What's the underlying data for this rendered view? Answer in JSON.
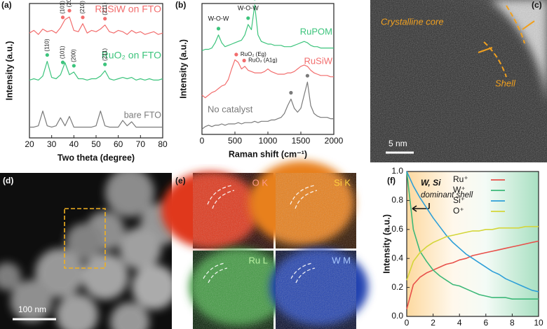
{
  "panel_labels": [
    "(a)",
    "(b)",
    "(c)",
    "(d)",
    "(e)",
    "(f)"
  ],
  "tem": {
    "core": "Crystalline core",
    "shell": "Shell",
    "scale": "5 nm"
  },
  "stem": {
    "scale": "100 nm"
  },
  "maps": [
    "O K",
    "Si K",
    "Ru L",
    "W M"
  ],
  "chart_data": [
    {
      "type": "line",
      "x_label": "Two theta (degree)",
      "y_label": "Intensity (a.u.)",
      "xlim": [
        20,
        80
      ],
      "xticks": [
        20,
        30,
        40,
        50,
        60,
        70,
        80
      ],
      "ylim": [
        0,
        1
      ],
      "x": [
        20,
        22,
        24,
        26,
        28,
        30,
        32,
        34,
        36,
        38,
        40,
        42,
        44,
        46,
        48,
        50,
        52,
        54,
        56,
        58,
        60,
        62,
        64,
        66,
        68,
        70,
        72,
        74,
        76,
        78,
        80
      ],
      "series": [
        {
          "name": "RuSiW on FTO",
          "color": "#f26d6d",
          "values": [
            0.78,
            0.8,
            0.77,
            0.81,
            0.79,
            0.8,
            0.78,
            0.82,
            0.88,
            0.9,
            0.8,
            0.79,
            0.85,
            0.78,
            0.8,
            0.79,
            0.81,
            0.84,
            0.79,
            0.78,
            0.8,
            0.79,
            0.77,
            0.8,
            0.78,
            0.79,
            0.77,
            0.78,
            0.79,
            0.77,
            0.78
          ],
          "peaks": [
            {
              "x": 35,
              "label": "(101)"
            },
            {
              "x": 38,
              "label": "(200)"
            },
            {
              "x": 44,
              "label": "(210)"
            },
            {
              "x": 54,
              "label": "(211)"
            }
          ]
        },
        {
          "name": "RuO₂ on FTO",
          "color": "#3cc47c",
          "values": [
            0.43,
            0.44,
            0.43,
            0.46,
            0.57,
            0.45,
            0.44,
            0.47,
            0.56,
            0.47,
            0.49,
            0.44,
            0.44,
            0.43,
            0.44,
            0.44,
            0.46,
            0.5,
            0.44,
            0.43,
            0.44,
            0.45,
            0.44,
            0.45,
            0.43,
            0.44,
            0.43,
            0.44,
            0.43,
            0.43,
            0.44
          ],
          "peaks": [
            {
              "x": 28,
              "label": "(110)"
            },
            {
              "x": 35,
              "label": "(101)"
            },
            {
              "x": 40,
              "label": "(200)"
            },
            {
              "x": 54,
              "label": "(211)"
            }
          ]
        },
        {
          "name": "bare FTO",
          "color": "#7a7a7a",
          "values": [
            0.08,
            0.08,
            0.09,
            0.2,
            0.09,
            0.08,
            0.09,
            0.15,
            0.09,
            0.16,
            0.08,
            0.08,
            0.08,
            0.08,
            0.08,
            0.09,
            0.2,
            0.09,
            0.08,
            0.08,
            0.08,
            0.13,
            0.09,
            0.12,
            0.08,
            0.08,
            0.08,
            0.08,
            0.08,
            0.08,
            0.08
          ],
          "peaks": []
        }
      ]
    },
    {
      "type": "line",
      "x_label": "Raman shift (cm⁻¹)",
      "y_label": "Intensity (a.u.)",
      "xlim": [
        0,
        2000
      ],
      "xticks": [
        0,
        500,
        1000,
        1500,
        2000
      ],
      "ylim": [
        0,
        1
      ],
      "x": [
        0,
        50,
        100,
        150,
        200,
        250,
        300,
        350,
        400,
        450,
        500,
        550,
        600,
        650,
        700,
        750,
        800,
        850,
        900,
        950,
        1000,
        1050,
        1100,
        1150,
        1200,
        1250,
        1300,
        1350,
        1400,
        1450,
        1500,
        1550,
        1600,
        1650,
        1700,
        1750,
        1800,
        1850,
        1900,
        1950,
        2000
      ],
      "series": [
        {
          "name": "RuPOM",
          "color": "#3cc47c",
          "values": [
            0.64,
            0.65,
            0.65,
            0.66,
            0.7,
            0.76,
            0.7,
            0.67,
            0.68,
            0.69,
            0.7,
            0.71,
            0.72,
            0.76,
            0.84,
            0.8,
            0.99,
            0.76,
            0.71,
            0.7,
            0.69,
            0.69,
            0.68,
            0.68,
            0.68,
            0.67,
            0.67,
            0.67,
            0.68,
            0.69,
            0.7,
            0.71,
            0.7,
            0.68,
            0.67,
            0.67,
            0.66,
            0.66,
            0.66,
            0.66,
            0.66
          ],
          "peaks": [
            {
              "x": 250,
              "label": "W-O-W"
            },
            {
              "x": 700,
              "label": "W-O-W"
            },
            {
              "x": 800
            }
          ]
        },
        {
          "name": "RuSiW",
          "color": "#f26d6d",
          "values": [
            0.3,
            0.28,
            0.3,
            0.32,
            0.33,
            0.35,
            0.37,
            0.38,
            0.42,
            0.5,
            0.57,
            0.55,
            0.5,
            0.52,
            0.49,
            0.48,
            0.47,
            0.47,
            0.47,
            0.48,
            0.5,
            0.48,
            0.47,
            0.46,
            0.46,
            0.46,
            0.47,
            0.47,
            0.48,
            0.5,
            0.52,
            0.53,
            0.52,
            0.49,
            0.47,
            0.46,
            0.45,
            0.45,
            0.45,
            0.44,
            0.44
          ],
          "peaks": [
            {
              "x": 520,
              "label": "RuO₂ (Eg)"
            },
            {
              "x": 640,
              "label": "RuO₂ (A1g)"
            }
          ]
        },
        {
          "name": "No catalyst",
          "color": "#7a7a7a",
          "values": [
            0.04,
            0.06,
            0.07,
            0.06,
            0.07,
            0.07,
            0.08,
            0.07,
            0.08,
            0.08,
            0.08,
            0.09,
            0.08,
            0.09,
            0.09,
            0.09,
            0.1,
            0.09,
            0.1,
            0.1,
            0.1,
            0.11,
            0.11,
            0.12,
            0.13,
            0.16,
            0.22,
            0.27,
            0.2,
            0.17,
            0.2,
            0.3,
            0.4,
            0.22,
            0.16,
            0.14,
            0.13,
            0.13,
            0.13,
            0.12,
            0.12
          ],
          "peaks": [
            {
              "x": 1350
            },
            {
              "x": 1600
            }
          ]
        }
      ]
    },
    {
      "type": "line",
      "y_label": "Intensity (a.u.)",
      "xlim": [
        0,
        10
      ],
      "xticks": [
        0,
        2,
        4,
        6,
        8,
        10
      ],
      "ylim": [
        0,
        1
      ],
      "yticks": [
        {
          "value": 0,
          "label": "0.0"
        },
        0.2,
        0.4,
        0.6,
        0.8,
        {
          "value": 1,
          "label": "1.0"
        }
      ],
      "annotations": [
        "W, Si",
        "dominant shell"
      ],
      "legend": "upper right",
      "x": [
        0,
        0.5,
        1,
        1.5,
        2,
        2.5,
        3,
        3.5,
        4,
        4.5,
        5,
        5.5,
        6,
        6.5,
        7,
        7.5,
        8,
        8.5,
        9,
        9.5,
        10
      ],
      "series": [
        {
          "name": "Ru⁺",
          "color": "#e8504a",
          "values": [
            0.05,
            0.22,
            0.27,
            0.3,
            0.32,
            0.34,
            0.36,
            0.37,
            0.39,
            0.4,
            0.42,
            0.43,
            0.44,
            0.45,
            0.46,
            0.47,
            0.48,
            0.49,
            0.5,
            0.51,
            0.52
          ]
        },
        {
          "name": "W⁺",
          "color": "#3cb878",
          "values": [
            1.0,
            0.6,
            0.45,
            0.38,
            0.32,
            0.28,
            0.25,
            0.22,
            0.21,
            0.19,
            0.17,
            0.15,
            0.14,
            0.13,
            0.13,
            0.13,
            0.12,
            0.12,
            0.12,
            0.12,
            0.12
          ]
        },
        {
          "name": "Si⁺",
          "color": "#2e9fd8",
          "values": [
            1.0,
            0.9,
            0.82,
            0.75,
            0.68,
            0.62,
            0.56,
            0.51,
            0.47,
            0.43,
            0.4,
            0.37,
            0.34,
            0.31,
            0.29,
            0.26,
            0.24,
            0.22,
            0.2,
            0.18,
            0.17
          ]
        },
        {
          "name": "O⁺",
          "color": "#d4d63a",
          "values": [
            0.25,
            0.38,
            0.44,
            0.48,
            0.51,
            0.53,
            0.55,
            0.56,
            0.57,
            0.58,
            0.59,
            0.59,
            0.6,
            0.6,
            0.61,
            0.61,
            0.61,
            0.61,
            0.62,
            0.62,
            0.62
          ]
        }
      ]
    }
  ]
}
